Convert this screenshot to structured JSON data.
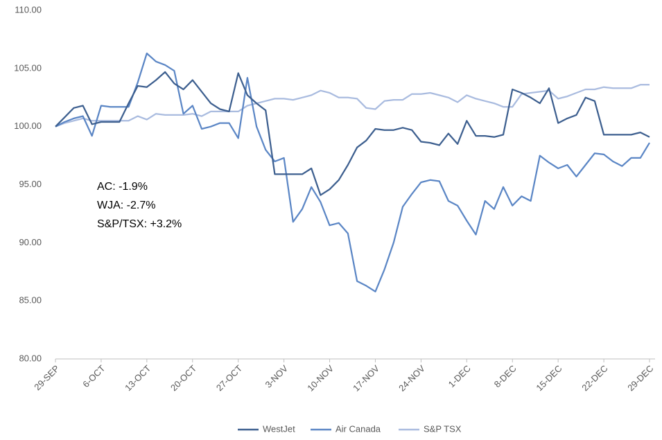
{
  "chart_data": {
    "type": "line",
    "categories": [
      "29-SEP",
      null,
      null,
      null,
      null,
      "6-OCT",
      null,
      null,
      null,
      null,
      "13-OCT",
      null,
      null,
      null,
      null,
      "20-OCT",
      null,
      null,
      null,
      null,
      "27-OCT",
      null,
      null,
      null,
      null,
      "3-NOV",
      null,
      null,
      null,
      null,
      "10-NOV",
      null,
      null,
      null,
      null,
      "17-NOV",
      null,
      null,
      null,
      null,
      "24-NOV",
      null,
      null,
      null,
      null,
      "1-DEC",
      null,
      null,
      null,
      null,
      "8-DEC",
      null,
      null,
      null,
      null,
      "15-DEC",
      null,
      null,
      null,
      null,
      "22-DEC",
      null,
      null,
      null,
      null,
      "29-DEC"
    ],
    "series": [
      {
        "name": "WestJet",
        "color": "#3d5f8f",
        "values": [
          100,
          100.8,
          101.6,
          101.8,
          100.2,
          100.4,
          100.4,
          100.4,
          102.0,
          103.5,
          103.4,
          104.0,
          104.7,
          103.7,
          103.2,
          104.0,
          103.0,
          102.0,
          101.5,
          101.3,
          104.6,
          102.7,
          102.0,
          101.4,
          95.9,
          95.9,
          95.9,
          95.9,
          96.4,
          94.1,
          94.6,
          95.4,
          96.7,
          98.2,
          98.8,
          99.8,
          99.7,
          99.7,
          99.9,
          99.7,
          98.7,
          98.6,
          98.4,
          99.4,
          98.5,
          100.5,
          99.2,
          99.2,
          99.1,
          99.3,
          103.2,
          102.9,
          102.5,
          102.0,
          103.3,
          100.3,
          100.7,
          101.0,
          102.5,
          102.2,
          99.3,
          99.3,
          99.3,
          99.3,
          99.5,
          99.1
        ]
      },
      {
        "name": "Air Canada",
        "color": "#5b86c5",
        "values": [
          100,
          100.4,
          100.7,
          100.9,
          99.2,
          101.8,
          101.7,
          101.7,
          101.7,
          103.8,
          106.3,
          105.6,
          105.3,
          104.8,
          101.1,
          101.8,
          99.8,
          100.0,
          100.3,
          100.3,
          99.0,
          104.2,
          100.0,
          98.0,
          97.0,
          97.3,
          91.8,
          92.9,
          94.8,
          93.5,
          91.5,
          91.7,
          90.8,
          86.7,
          86.3,
          85.8,
          87.7,
          90.0,
          93.1,
          94.2,
          95.2,
          95.4,
          95.3,
          93.6,
          93.2,
          91.9,
          90.7,
          93.6,
          92.9,
          94.8,
          93.2,
          94.0,
          93.6,
          97.5,
          96.9,
          96.4,
          96.7,
          95.7,
          96.7,
          97.7,
          97.6,
          97.0,
          96.6,
          97.3,
          97.3,
          98.6
        ]
      },
      {
        "name": "S&P TSX",
        "color": "#a9bbdf",
        "values": [
          100,
          100.3,
          100.5,
          100.7,
          100.5,
          100.5,
          100.5,
          100.5,
          100.5,
          100.9,
          100.6,
          101.1,
          101.0,
          101.0,
          101.0,
          101.1,
          100.9,
          101.3,
          101.3,
          101.3,
          101.3,
          101.8,
          102.0,
          102.2,
          102.4,
          102.4,
          102.3,
          102.5,
          102.7,
          103.1,
          102.9,
          102.5,
          102.5,
          102.4,
          101.6,
          101.5,
          102.2,
          102.3,
          102.3,
          102.8,
          102.8,
          102.9,
          102.7,
          102.5,
          102.1,
          102.7,
          102.4,
          102.2,
          102.0,
          101.7,
          101.7,
          102.8,
          102.9,
          103.0,
          103.1,
          102.4,
          102.6,
          102.9,
          103.2,
          103.2,
          103.4,
          103.3,
          103.3,
          103.3,
          103.6,
          103.6
        ]
      }
    ],
    "ylim": [
      80,
      110
    ],
    "yticks": [
      {
        "value": 80,
        "label": "80.00"
      },
      {
        "value": 85,
        "label": "85.00"
      },
      {
        "value": 90,
        "label": "90.00"
      },
      {
        "value": 95,
        "label": "95.00"
      },
      {
        "value": 100,
        "label": "100.00"
      },
      {
        "value": 105,
        "label": "105.00"
      },
      {
        "value": 110,
        "label": "110.00"
      }
    ],
    "annotations": [
      "AC: -1.9%",
      "WJA: -2.7%",
      "S&P/TSX: +3.2%"
    ],
    "legend": "bottom"
  }
}
